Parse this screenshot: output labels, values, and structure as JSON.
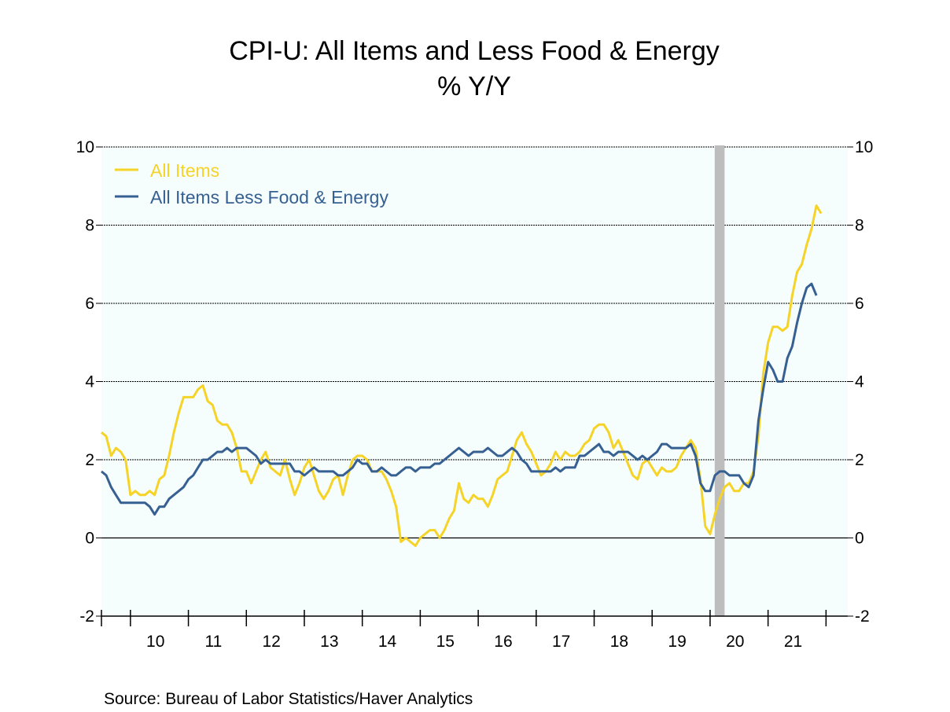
{
  "chart_data": {
    "type": "line",
    "title": "CPI-U: All Items and Less Food & Energy",
    "subtitle": "% Y/Y",
    "source": "Source:  Bureau of Labor Statistics/Haver Analytics",
    "xlabel": "",
    "ylabel": "",
    "ylim": [
      -2,
      10
    ],
    "yticks": [
      -2,
      0,
      2,
      4,
      6,
      8,
      10
    ],
    "xlim": [
      2009.5,
      2022.375
    ],
    "year_labels": [
      "10",
      "11",
      "12",
      "13",
      "14",
      "15",
      "16",
      "17",
      "18",
      "19",
      "20",
      "21"
    ],
    "year_label_values": [
      2010,
      2011,
      2012,
      2013,
      2014,
      2015,
      2016,
      2017,
      2018,
      2019,
      2020,
      2021
    ],
    "year_boundaries": [
      2010,
      2011,
      2012,
      2013,
      2014,
      2015,
      2016,
      2017,
      2018,
      2019,
      2020,
      2021,
      2022
    ],
    "recession": {
      "start": 2020.08,
      "end": 2020.25,
      "color": "#bdbdbd"
    },
    "x_start": 2009.5,
    "x_step": 0.0833333,
    "grid": true,
    "legend_position": "top-left",
    "colors": {
      "all_items": "#f5d327",
      "core": "#376092",
      "plot_bg": "#f5fdfd",
      "grid": "#000000"
    },
    "series": [
      {
        "name": "All Items",
        "key": "all_items",
        "values": [
          2.7,
          2.6,
          2.1,
          2.3,
          2.2,
          2.0,
          1.1,
          1.2,
          1.1,
          1.1,
          1.2,
          1.1,
          1.5,
          1.6,
          2.1,
          2.7,
          3.2,
          3.6,
          3.6,
          3.6,
          3.8,
          3.9,
          3.5,
          3.4,
          3.0,
          2.9,
          2.9,
          2.7,
          2.3,
          1.7,
          1.7,
          1.4,
          1.7,
          2.0,
          2.2,
          1.8,
          1.7,
          1.6,
          2.0,
          1.5,
          1.1,
          1.4,
          1.8,
          2.0,
          1.6,
          1.2,
          1.0,
          1.2,
          1.5,
          1.6,
          1.1,
          1.6,
          2.0,
          2.1,
          2.1,
          2.0,
          1.7,
          1.7,
          1.7,
          1.5,
          1.2,
          0.8,
          -0.1,
          0.0,
          -0.1,
          -0.2,
          0.0,
          0.1,
          0.2,
          0.2,
          0.0,
          0.2,
          0.5,
          0.7,
          1.4,
          1.0,
          0.9,
          1.1,
          1.0,
          1.0,
          0.8,
          1.1,
          1.5,
          1.6,
          1.7,
          2.1,
          2.5,
          2.7,
          2.4,
          2.2,
          1.9,
          1.6,
          1.7,
          1.9,
          2.2,
          2.0,
          2.2,
          2.1,
          2.1,
          2.2,
          2.4,
          2.5,
          2.8,
          2.9,
          2.9,
          2.7,
          2.3,
          2.5,
          2.2,
          1.9,
          1.6,
          1.5,
          1.9,
          2.0,
          1.8,
          1.6,
          1.8,
          1.7,
          1.7,
          1.8,
          2.1,
          2.3,
          2.5,
          2.3,
          1.5,
          0.3,
          0.1,
          0.6,
          1.0,
          1.3,
          1.4,
          1.2,
          1.2,
          1.4,
          1.4,
          1.7,
          2.6,
          4.2,
          5.0,
          5.4,
          5.4,
          5.3,
          5.4,
          6.2,
          6.8,
          7.0,
          7.5,
          7.9,
          8.5,
          8.3
        ]
      },
      {
        "name": "All Items Less Food & Energy",
        "key": "core",
        "values": [
          1.7,
          1.6,
          1.3,
          1.1,
          0.9,
          0.9,
          0.9,
          0.9,
          0.9,
          0.9,
          0.8,
          0.6,
          0.8,
          0.8,
          1.0,
          1.1,
          1.2,
          1.3,
          1.5,
          1.6,
          1.8,
          2.0,
          2.0,
          2.1,
          2.2,
          2.2,
          2.3,
          2.2,
          2.3,
          2.3,
          2.3,
          2.2,
          2.1,
          1.9,
          2.0,
          1.9,
          1.9,
          1.9,
          1.9,
          1.9,
          1.7,
          1.7,
          1.6,
          1.7,
          1.8,
          1.7,
          1.7,
          1.7,
          1.7,
          1.6,
          1.6,
          1.7,
          1.8,
          2.0,
          1.9,
          1.9,
          1.7,
          1.7,
          1.8,
          1.7,
          1.6,
          1.6,
          1.7,
          1.8,
          1.8,
          1.7,
          1.8,
          1.8,
          1.8,
          1.9,
          1.9,
          2.0,
          2.1,
          2.2,
          2.3,
          2.2,
          2.1,
          2.2,
          2.2,
          2.2,
          2.3,
          2.2,
          2.1,
          2.1,
          2.2,
          2.3,
          2.2,
          2.0,
          1.9,
          1.7,
          1.7,
          1.7,
          1.7,
          1.7,
          1.8,
          1.7,
          1.8,
          1.8,
          1.8,
          2.1,
          2.1,
          2.2,
          2.3,
          2.4,
          2.2,
          2.2,
          2.1,
          2.2,
          2.2,
          2.2,
          2.1,
          2.0,
          2.1,
          2.0,
          2.1,
          2.2,
          2.4,
          2.4,
          2.3,
          2.3,
          2.3,
          2.3,
          2.4,
          2.1,
          1.4,
          1.2,
          1.2,
          1.6,
          1.7,
          1.7,
          1.6,
          1.6,
          1.6,
          1.4,
          1.3,
          1.6,
          3.0,
          3.8,
          4.5,
          4.3,
          4.0,
          4.0,
          4.6,
          4.9,
          5.5,
          6.0,
          6.4,
          6.5,
          6.2
        ]
      }
    ]
  }
}
